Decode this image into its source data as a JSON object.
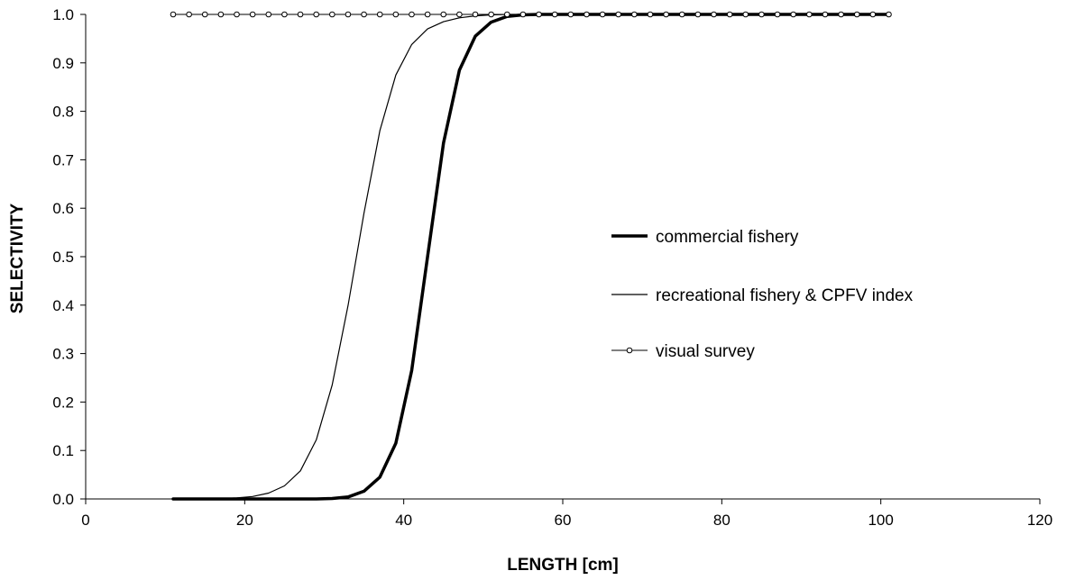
{
  "chart_data": {
    "type": "line",
    "title": "",
    "xlabel": "LENGTH [cm]",
    "ylabel": "SELECTIVITY",
    "xlim": [
      0,
      120
    ],
    "ylim": [
      0,
      1
    ],
    "xticks": [
      "0",
      "20",
      "40",
      "60",
      "80",
      "100",
      "120"
    ],
    "yticks": [
      "0.0",
      "0.1",
      "0.2",
      "0.3",
      "0.4",
      "0.5",
      "0.6",
      "0.7",
      "0.8",
      "0.9",
      "1.0"
    ],
    "grid": false,
    "legend_position": "center-right",
    "x": [
      11,
      13,
      15,
      17,
      19,
      21,
      23,
      25,
      27,
      29,
      31,
      33,
      35,
      37,
      39,
      41,
      43,
      45,
      47,
      49,
      51,
      53,
      55,
      57,
      59,
      61,
      63,
      65,
      67,
      69,
      71,
      73,
      75,
      77,
      79,
      81,
      83,
      85,
      87,
      89,
      91,
      93,
      95,
      97,
      99,
      101
    ],
    "series": [
      {
        "name": "commercial fishery",
        "style": "thick",
        "color": "#000000",
        "values": [
          0,
          0,
          0,
          0,
          0,
          0,
          0,
          0,
          0,
          0,
          0.001,
          0.004,
          0.016,
          0.045,
          0.115,
          0.265,
          0.5,
          0.735,
          0.885,
          0.955,
          0.984,
          0.996,
          0.999,
          1,
          1,
          1,
          1,
          1,
          1,
          1,
          1,
          1,
          1,
          1,
          1,
          1,
          1,
          1,
          1,
          1,
          1,
          1,
          1,
          1,
          1,
          1
        ]
      },
      {
        "name": "recreational fishery & CPFV index",
        "style": "thin",
        "color": "#000000",
        "values": [
          0,
          0,
          0,
          0.001,
          0.002,
          0.005,
          0.012,
          0.027,
          0.058,
          0.122,
          0.235,
          0.4,
          0.59,
          0.76,
          0.875,
          0.938,
          0.97,
          0.985,
          0.993,
          0.997,
          0.999,
          1,
          1,
          1,
          1,
          1,
          1,
          1,
          1,
          1,
          1,
          1,
          1,
          1,
          1,
          1,
          1,
          1,
          1,
          1,
          1,
          1,
          1,
          1,
          1,
          1
        ]
      },
      {
        "name": "visual survey",
        "style": "markers",
        "color": "#000000",
        "values": [
          1,
          1,
          1,
          1,
          1,
          1,
          1,
          1,
          1,
          1,
          1,
          1,
          1,
          1,
          1,
          1,
          1,
          1,
          1,
          1,
          1,
          1,
          1,
          1,
          1,
          1,
          1,
          1,
          1,
          1,
          1,
          1,
          1,
          1,
          1,
          1,
          1,
          1,
          1,
          1,
          1,
          1,
          1,
          1,
          1,
          1
        ]
      }
    ]
  }
}
